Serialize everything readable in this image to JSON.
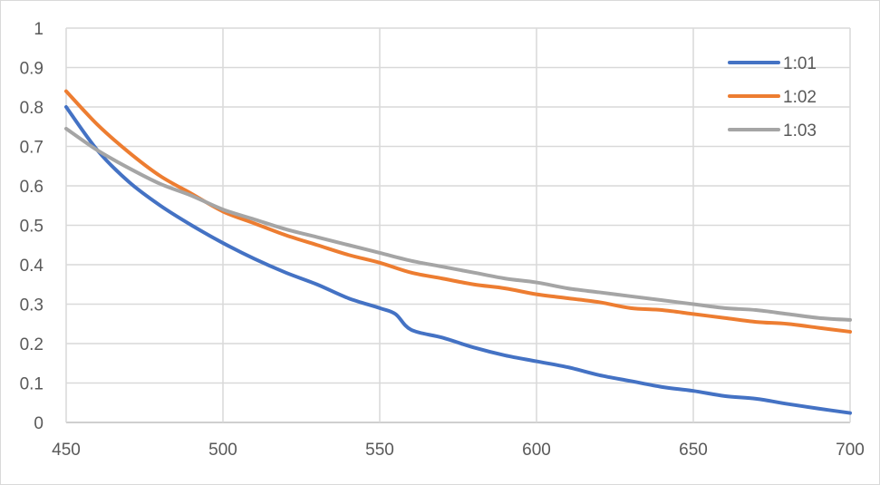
{
  "chart_data": {
    "type": "line",
    "title": "",
    "xlabel": "",
    "ylabel": "",
    "xlim": [
      450,
      700
    ],
    "ylim": [
      0,
      1
    ],
    "x_ticks": [
      450,
      500,
      550,
      600,
      650,
      700
    ],
    "y_ticks": [
      0,
      0.1,
      0.2,
      0.3,
      0.4,
      0.5,
      0.6,
      0.7,
      0.8,
      0.9,
      1
    ],
    "x_tick_labels": [
      "450",
      "500",
      "550",
      "600",
      "650",
      "700"
    ],
    "y_tick_labels": [
      "0",
      "0.1",
      "0.2",
      "0.3",
      "0.4",
      "0.5",
      "0.6",
      "0.7",
      "0.8",
      "0.9",
      "1"
    ],
    "grid": true,
    "legend_position": "upper-right-inside",
    "series": [
      {
        "name": "1:01",
        "color": "#4472c4",
        "x": [
          450,
          460,
          470,
          480,
          490,
          500,
          510,
          520,
          530,
          540,
          550,
          555,
          560,
          570,
          580,
          590,
          600,
          610,
          620,
          630,
          640,
          650,
          660,
          670,
          680,
          690,
          700
        ],
        "values": [
          0.8,
          0.69,
          0.61,
          0.55,
          0.5,
          0.455,
          0.415,
          0.38,
          0.35,
          0.315,
          0.29,
          0.275,
          0.235,
          0.215,
          0.19,
          0.17,
          0.155,
          0.14,
          0.12,
          0.105,
          0.09,
          0.08,
          0.067,
          0.06,
          0.047,
          0.035,
          0.024
        ]
      },
      {
        "name": "1:02",
        "color": "#ed7d31",
        "x": [
          450,
          460,
          470,
          480,
          490,
          500,
          510,
          520,
          530,
          540,
          550,
          560,
          570,
          580,
          590,
          600,
          610,
          620,
          630,
          640,
          650,
          660,
          670,
          680,
          690,
          700
        ],
        "values": [
          0.84,
          0.755,
          0.685,
          0.625,
          0.58,
          0.535,
          0.505,
          0.475,
          0.45,
          0.425,
          0.405,
          0.38,
          0.365,
          0.35,
          0.34,
          0.325,
          0.315,
          0.305,
          0.29,
          0.285,
          0.275,
          0.265,
          0.255,
          0.25,
          0.24,
          0.23
        ]
      },
      {
        "name": "1:03",
        "color": "#a5a5a5",
        "x": [
          450,
          460,
          470,
          480,
          490,
          500,
          510,
          520,
          530,
          540,
          550,
          560,
          570,
          580,
          590,
          600,
          610,
          620,
          630,
          640,
          650,
          660,
          670,
          680,
          690,
          700
        ],
        "values": [
          0.745,
          0.69,
          0.645,
          0.605,
          0.575,
          0.54,
          0.515,
          0.49,
          0.47,
          0.45,
          0.43,
          0.41,
          0.395,
          0.38,
          0.365,
          0.355,
          0.34,
          0.33,
          0.32,
          0.31,
          0.3,
          0.29,
          0.285,
          0.275,
          0.265,
          0.26
        ]
      }
    ]
  },
  "style": {
    "grid_color": "#d9d9d9",
    "axis_color": "#bfbfbf",
    "text_color": "#595959"
  }
}
